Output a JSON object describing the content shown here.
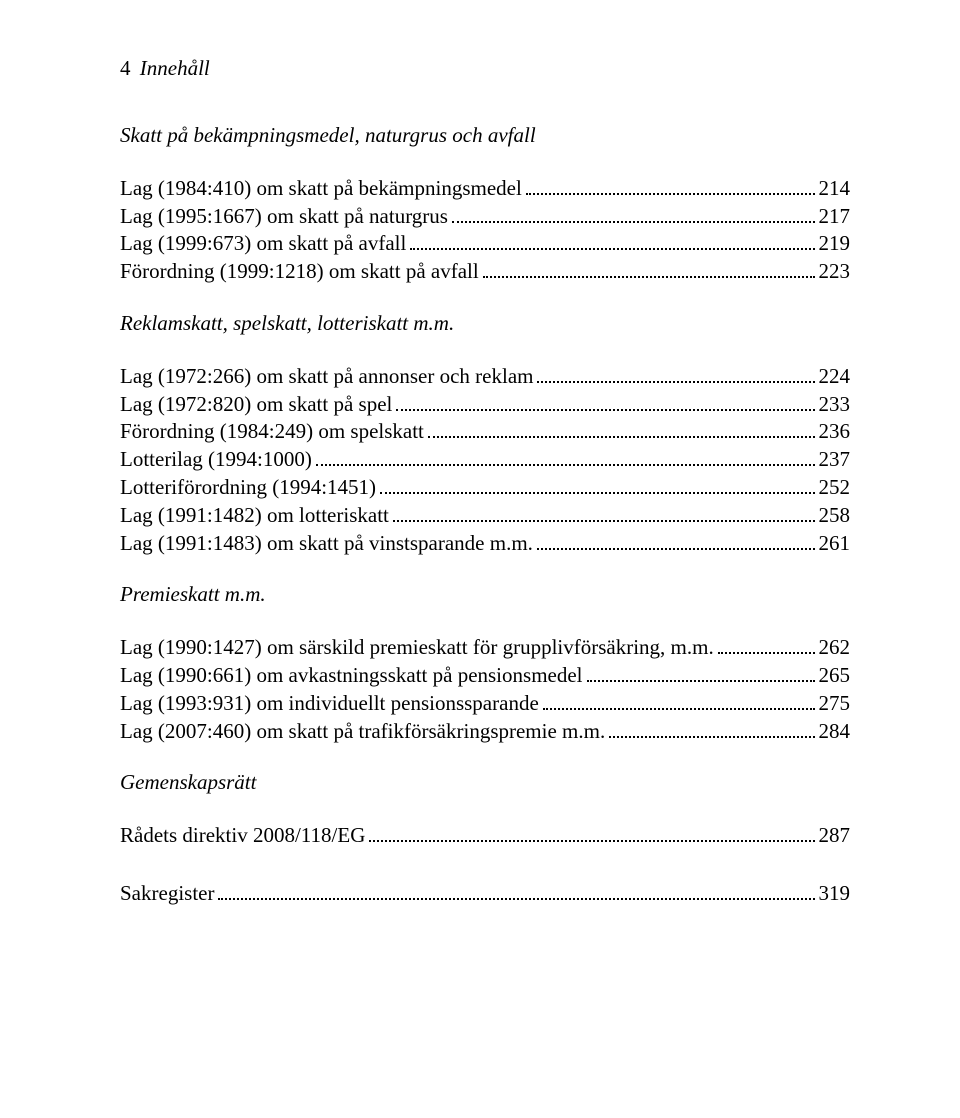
{
  "header": {
    "pagenum": "4",
    "title": "Innehåll"
  },
  "sections": [
    {
      "heading": "Skatt på bekämpningsmedel, naturgrus och avfall",
      "entries": [
        {
          "label": "Lag (1984:410) om skatt på bekämpningsmedel",
          "page": "214"
        },
        {
          "label": "Lag (1995:1667) om skatt på naturgrus",
          "page": "217"
        },
        {
          "label": "Lag (1999:673) om skatt på avfall",
          "page": "219"
        },
        {
          "label": "Förordning (1999:1218) om skatt på avfall",
          "page": "223"
        }
      ]
    },
    {
      "heading": "Reklamskatt, spelskatt, lotteriskatt m.m.",
      "entries": [
        {
          "label": "Lag (1972:266) om skatt på annonser och reklam",
          "page": "224"
        },
        {
          "label": "Lag (1972:820) om skatt på spel",
          "page": "233"
        },
        {
          "label": "Förordning (1984:249) om spelskatt",
          "page": "236"
        },
        {
          "label": "Lotterilag (1994:1000)",
          "page": "237"
        },
        {
          "label": "Lotteriförordning (1994:1451)",
          "page": "252"
        },
        {
          "label": "Lag (1991:1482) om lotteriskatt",
          "page": "258"
        },
        {
          "label": "Lag (1991:1483) om skatt på vinstsparande m.m. ",
          "page": "261"
        }
      ]
    },
    {
      "heading": "Premieskatt m.m.",
      "entries": [
        {
          "label": "Lag (1990:1427) om särskild premieskatt för grupplivförsäkring, m.m. ",
          "page": "262"
        },
        {
          "label": "Lag (1990:661) om avkastningsskatt på pensionsmedel",
          "page": "265"
        },
        {
          "label": "Lag (1993:931) om individuellt pensionssparande",
          "page": "275"
        },
        {
          "label": "Lag (2007:460) om skatt på trafikförsäkringspremie m.m. ",
          "page": "284"
        }
      ]
    },
    {
      "heading": "Gemenskapsrätt",
      "entries": [
        {
          "label": "Rådets direktiv 2008/118/EG",
          "page": "287"
        }
      ]
    }
  ],
  "trailing": {
    "label": "Sakregister",
    "page": "319"
  }
}
